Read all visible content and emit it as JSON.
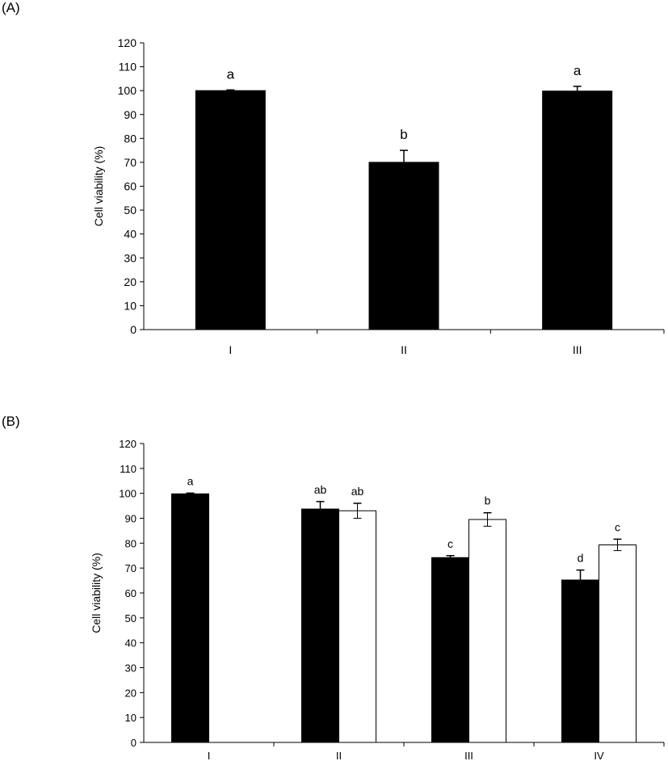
{
  "panels": {
    "a_label": "(A)",
    "b_label": "(B)"
  },
  "chart_data": [
    {
      "type": "bar",
      "panel": "(A)",
      "ylabel": "Cell viability (%)",
      "ylim": [
        0,
        120
      ],
      "ytick_step": 10,
      "yticks": [
        "0",
        "10",
        "20",
        "30",
        "40",
        "50",
        "60",
        "70",
        "80",
        "90",
        "100",
        "110",
        "120"
      ],
      "categories": [
        "I",
        "II",
        "III"
      ],
      "series": [
        {
          "fill": "#000000",
          "values": [
            100,
            70,
            99.8
          ],
          "errors": [
            0.3,
            5,
            2
          ],
          "letters": [
            "a",
            "b",
            "a"
          ]
        }
      ],
      "grid": false
    },
    {
      "type": "bar",
      "panel": "(B)",
      "ylabel": "Cell viability (%)",
      "ylim": [
        0,
        120
      ],
      "ytick_step": 10,
      "yticks": [
        "0",
        "10",
        "20",
        "30",
        "40",
        "50",
        "60",
        "70",
        "80",
        "90",
        "100",
        "110",
        "120"
      ],
      "categories": [
        "I",
        "II",
        "III",
        "IV"
      ],
      "series": [
        {
          "fill": "#000000",
          "values": [
            99.8,
            93.7,
            74.2,
            65.2
          ],
          "errors": [
            0.3,
            3,
            0.8,
            4
          ],
          "letters": [
            "a",
            "ab",
            "c",
            "d"
          ]
        },
        {
          "fill": "#ffffff",
          "values": [
            null,
            93,
            89.5,
            79.3
          ],
          "errors": [
            null,
            3,
            2.7,
            2.3
          ],
          "letters": [
            null,
            "ab",
            "b",
            "c"
          ]
        }
      ],
      "grid": false
    }
  ]
}
